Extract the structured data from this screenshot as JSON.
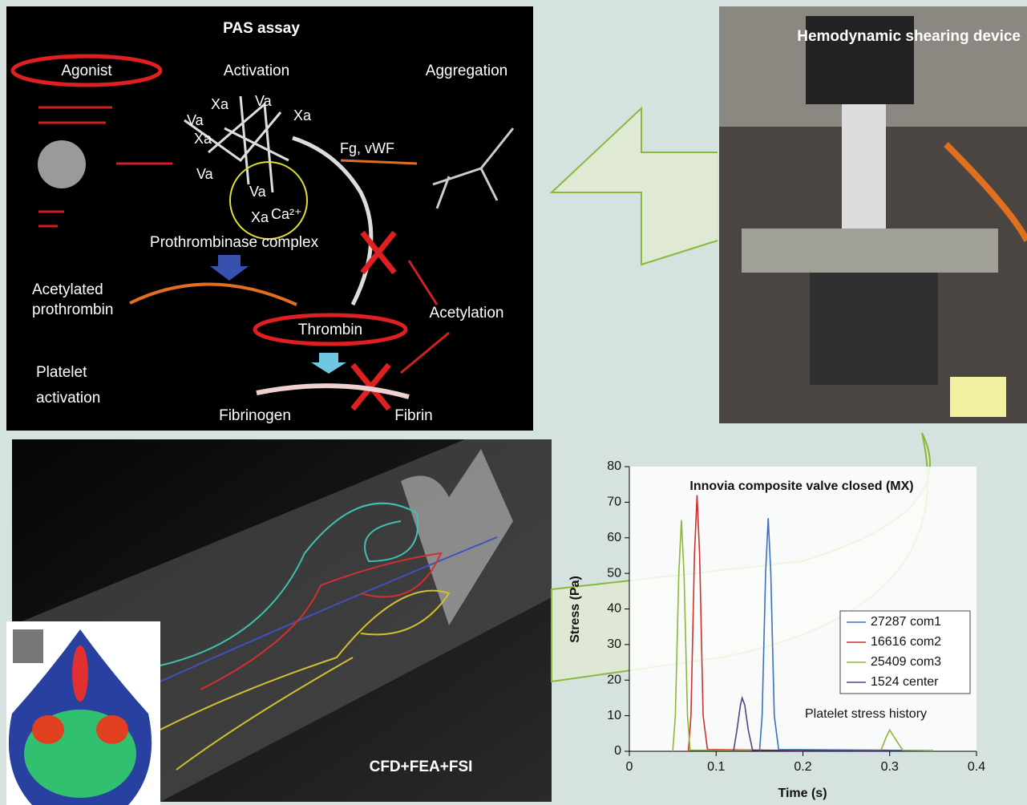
{
  "pas": {
    "title": "PAS assay",
    "agonist": "Agonist",
    "activation": "Activation",
    "aggregation": "Aggregation",
    "factors": [
      "Xa",
      "Va",
      "Xa",
      "Va",
      "Xa",
      "Va",
      "Va",
      "Xa"
    ],
    "calcium": "Ca²⁺",
    "fg": "Fg, vWF",
    "complex": "Prothrombinase complex",
    "acetylated": [
      "Acetylated",
      "prothrombin"
    ],
    "thrombin": "Thrombin",
    "acetylation": "Acetylation",
    "platelet": [
      "Platelet",
      "activation"
    ],
    "fibrinogen": "Fibrinogen",
    "fibrin": "Fibrin"
  },
  "device": {
    "label": "Hemodynamic shearing device"
  },
  "cfd": {
    "label": "CFD+FEA+FSI"
  },
  "chart_data": {
    "type": "line",
    "title": "Innovia composite valve closed (MX)",
    "annotation": "Platelet stress history",
    "x_label": "Time (s)",
    "y_label": "Stress (Pa)",
    "xlim": [
      0,
      0.4
    ],
    "ylim": [
      0,
      80
    ],
    "xticks": [
      0,
      0.1,
      0.2,
      0.3,
      0.4
    ],
    "yticks": [
      0,
      10,
      20,
      30,
      40,
      50,
      60,
      70,
      80
    ],
    "series": [
      {
        "name": "27287 com1",
        "color": "#3a6fc4",
        "x": [
          0.15,
          0.153,
          0.157,
          0.16,
          0.163,
          0.167,
          0.172,
          0.35
        ],
        "values": [
          0,
          10,
          50,
          65.5,
          50,
          10,
          0.5,
          0.2
        ]
      },
      {
        "name": "16616 com2",
        "color": "#d03030",
        "x": [
          0.068,
          0.071,
          0.075,
          0.078,
          0.081,
          0.085,
          0.09,
          0.2
        ],
        "values": [
          0,
          10,
          55,
          72,
          55,
          10,
          0.5,
          0.2
        ]
      },
      {
        "name": "25409 com3",
        "color": "#8ab83a",
        "x": [
          0.05,
          0.053,
          0.057,
          0.06,
          0.063,
          0.067,
          0.07,
          0.29,
          0.296,
          0.3,
          0.305,
          0.315,
          0.35
        ],
        "values": [
          0,
          10,
          50,
          65,
          50,
          10,
          0.3,
          0.3,
          4,
          6,
          4,
          0.3,
          0.2
        ]
      },
      {
        "name": "1524 center",
        "color": "#5a3c8c",
        "x": [
          0.12,
          0.124,
          0.128,
          0.13,
          0.133,
          0.137,
          0.142,
          0.3
        ],
        "values": [
          0,
          6,
          13,
          15,
          13,
          6,
          0.3,
          0.2
        ]
      }
    ]
  }
}
